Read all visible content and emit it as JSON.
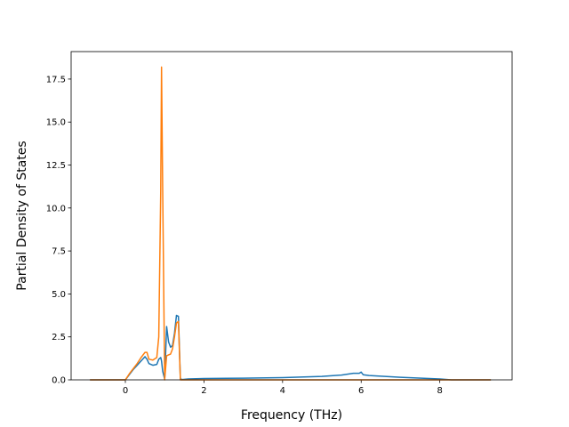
{
  "chart_data": {
    "type": "line",
    "xlabel": "Frequency (THz)",
    "ylabel": "Partial Density of States",
    "x": [
      -0.9,
      0,
      0.1,
      0.2,
      0.3,
      0.4,
      0.5,
      0.55,
      0.6,
      0.7,
      0.8,
      0.85,
      0.9,
      0.92,
      0.95,
      1.0,
      1.05,
      1.1,
      1.15,
      1.2,
      1.25,
      1.3,
      1.35,
      1.4,
      1.45,
      1.6,
      2,
      3,
      4,
      5,
      5.5,
      5.8,
      5.95,
      6.0,
      6.05,
      6.2,
      7,
      8,
      8.3,
      9.3
    ],
    "series": [
      {
        "color": "#1f77b4",
        "values": [
          0,
          0,
          0.3,
          0.6,
          0.85,
          1.1,
          1.35,
          1.2,
          0.95,
          0.85,
          0.9,
          1.2,
          1.3,
          1.1,
          0.5,
          0.05,
          3.1,
          2.2,
          1.9,
          2.0,
          2.7,
          3.75,
          3.7,
          0.05,
          0.02,
          0.05,
          0.08,
          0.1,
          0.13,
          0.2,
          0.28,
          0.38,
          0.38,
          0.45,
          0.3,
          0.25,
          0.15,
          0.05,
          0,
          0
        ]
      },
      {
        "color": "#ff7f0e",
        "values": [
          0,
          0,
          0.35,
          0.65,
          0.95,
          1.3,
          1.6,
          1.6,
          1.2,
          1.15,
          1.3,
          2.5,
          11,
          18.2,
          11,
          0,
          1.4,
          1.45,
          1.5,
          1.8,
          2.5,
          3.3,
          3.4,
          0,
          0,
          0,
          0,
          0,
          0,
          0,
          0,
          0,
          0,
          0,
          0,
          0,
          0,
          0,
          0,
          0
        ]
      }
    ],
    "xlim": [
      -1.38,
      9.84
    ],
    "ylim": [
      0,
      19.1
    ],
    "xticks": [
      0,
      2,
      4,
      6,
      8
    ],
    "yticks": [
      {
        "value": 0,
        "label": "0.0"
      },
      {
        "value": 2.5,
        "label": "2.5"
      },
      {
        "value": 5,
        "label": "5.0"
      },
      {
        "value": 7.5,
        "label": "7.5"
      },
      {
        "value": 10,
        "label": "10.0"
      },
      {
        "value": 12.5,
        "label": "12.5"
      },
      {
        "value": 15,
        "label": "15.0"
      },
      {
        "value": 17.5,
        "label": "17.5"
      }
    ]
  }
}
